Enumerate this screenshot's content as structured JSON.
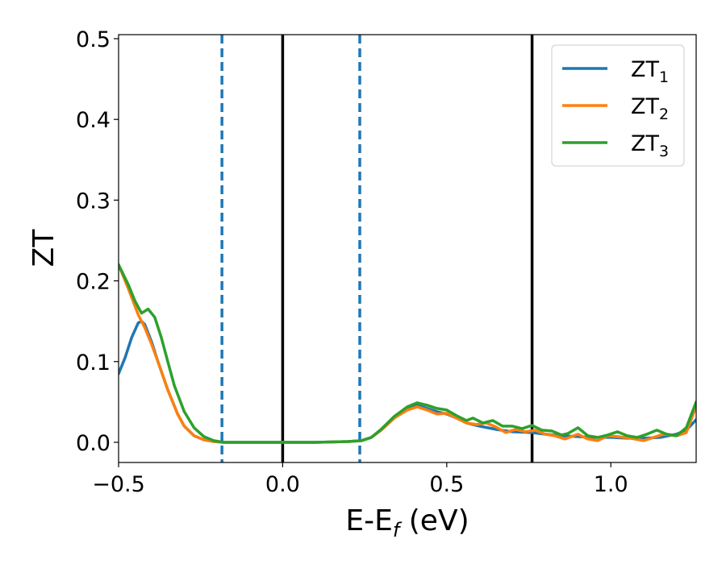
{
  "chart_data": {
    "type": "line",
    "xlabel": "E-E",
    "xlabel_sub": "f",
    "xlabel_unit": " (eV)",
    "ylabel": "ZT",
    "xlim": [
      -0.5,
      1.26
    ],
    "ylim": [
      -0.025,
      0.505
    ],
    "x_ticks": [
      -0.5,
      0.0,
      0.5,
      1.0
    ],
    "x_tick_labels": [
      "−0.5",
      "0.0",
      "0.5",
      "1.0"
    ],
    "y_ticks": [
      0.0,
      0.1,
      0.2,
      0.3,
      0.4,
      0.5
    ],
    "y_tick_labels": [
      "0.0",
      "0.1",
      "0.2",
      "0.3",
      "0.4",
      "0.5"
    ],
    "grid": false,
    "legend_position": "top-right",
    "vertical_lines": [
      {
        "x": -0.185,
        "style": "dashed",
        "color": "#1f77b4"
      },
      {
        "x": 0.235,
        "style": "dashed",
        "color": "#1f77b4"
      },
      {
        "x": 0.0,
        "style": "solid",
        "color": "#000000"
      },
      {
        "x": 0.76,
        "style": "solid",
        "color": "#000000"
      }
    ],
    "series": [
      {
        "name": "ZT",
        "sub": "1",
        "color": "#1f77b4",
        "x": [
          -0.5,
          -0.48,
          -0.46,
          -0.44,
          -0.43,
          -0.42,
          -0.4,
          -0.38,
          -0.35,
          -0.32,
          -0.3,
          -0.27,
          -0.24,
          -0.21,
          -0.18,
          -0.1,
          0.0,
          0.1,
          0.2,
          0.24,
          0.27,
          0.3,
          0.34,
          0.38,
          0.41,
          0.44,
          0.47,
          0.5,
          0.53,
          0.56,
          0.6,
          0.65,
          0.7,
          0.76,
          0.8,
          0.85,
          0.9,
          0.95,
          1.0,
          1.05,
          1.1,
          1.15,
          1.2,
          1.23,
          1.26
        ],
        "y": [
          0.085,
          0.105,
          0.13,
          0.148,
          0.15,
          0.146,
          0.125,
          0.1,
          0.065,
          0.035,
          0.02,
          0.008,
          0.003,
          0.001,
          0.0,
          0.0,
          0.0,
          0.0,
          0.001,
          0.002,
          0.006,
          0.015,
          0.03,
          0.042,
          0.046,
          0.042,
          0.038,
          0.035,
          0.03,
          0.024,
          0.02,
          0.016,
          0.013,
          0.012,
          0.01,
          0.008,
          0.007,
          0.006,
          0.006,
          0.005,
          0.005,
          0.006,
          0.01,
          0.015,
          0.028
        ]
      },
      {
        "name": "ZT",
        "sub": "2",
        "color": "#ff7f0e",
        "x": [
          -0.5,
          -0.47,
          -0.44,
          -0.42,
          -0.4,
          -0.38,
          -0.35,
          -0.32,
          -0.3,
          -0.27,
          -0.24,
          -0.21,
          -0.18,
          -0.1,
          0.0,
          0.1,
          0.2,
          0.24,
          0.27,
          0.3,
          0.34,
          0.38,
          0.41,
          0.44,
          0.47,
          0.5,
          0.53,
          0.56,
          0.59,
          0.62,
          0.65,
          0.68,
          0.71,
          0.74,
          0.77,
          0.8,
          0.83,
          0.86,
          0.9,
          0.93,
          0.96,
          0.99,
          1.02,
          1.06,
          1.1,
          1.13,
          1.16,
          1.2,
          1.23,
          1.26
        ],
        "y": [
          0.22,
          0.19,
          0.158,
          0.142,
          0.122,
          0.1,
          0.065,
          0.035,
          0.02,
          0.008,
          0.003,
          0.001,
          0.0,
          0.0,
          0.0,
          0.0,
          0.001,
          0.002,
          0.006,
          0.015,
          0.03,
          0.04,
          0.044,
          0.04,
          0.035,
          0.036,
          0.03,
          0.024,
          0.022,
          0.024,
          0.019,
          0.012,
          0.016,
          0.013,
          0.015,
          0.01,
          0.008,
          0.004,
          0.01,
          0.004,
          0.002,
          0.008,
          0.007,
          0.005,
          0.002,
          0.006,
          0.01,
          0.008,
          0.012,
          0.045
        ]
      },
      {
        "name": "ZT",
        "sub": "3",
        "color": "#2ca02c",
        "x": [
          -0.5,
          -0.47,
          -0.45,
          -0.43,
          -0.41,
          -0.39,
          -0.37,
          -0.35,
          -0.33,
          -0.3,
          -0.27,
          -0.24,
          -0.21,
          -0.18,
          -0.1,
          0.0,
          0.1,
          0.2,
          0.24,
          0.27,
          0.3,
          0.34,
          0.38,
          0.41,
          0.44,
          0.47,
          0.5,
          0.53,
          0.56,
          0.58,
          0.61,
          0.64,
          0.67,
          0.7,
          0.73,
          0.76,
          0.79,
          0.82,
          0.85,
          0.87,
          0.9,
          0.93,
          0.96,
          0.99,
          1.02,
          1.05,
          1.08,
          1.11,
          1.14,
          1.17,
          1.2,
          1.23,
          1.26
        ],
        "y": [
          0.22,
          0.195,
          0.175,
          0.16,
          0.165,
          0.155,
          0.13,
          0.1,
          0.07,
          0.038,
          0.018,
          0.007,
          0.002,
          0.0,
          0.0,
          0.0,
          0.0,
          0.001,
          0.002,
          0.006,
          0.016,
          0.032,
          0.044,
          0.049,
          0.046,
          0.042,
          0.04,
          0.033,
          0.027,
          0.03,
          0.024,
          0.027,
          0.02,
          0.02,
          0.017,
          0.021,
          0.015,
          0.014,
          0.009,
          0.011,
          0.018,
          0.008,
          0.006,
          0.009,
          0.013,
          0.008,
          0.006,
          0.01,
          0.015,
          0.01,
          0.008,
          0.018,
          0.05
        ]
      }
    ]
  }
}
